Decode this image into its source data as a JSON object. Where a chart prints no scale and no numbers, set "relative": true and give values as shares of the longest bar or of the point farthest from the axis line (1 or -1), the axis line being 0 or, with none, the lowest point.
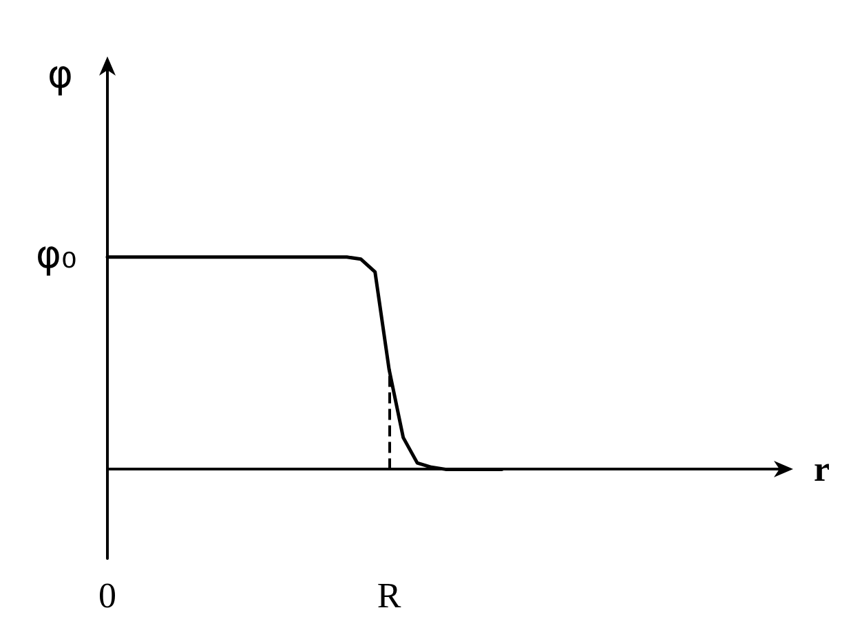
{
  "chart_data": {
    "type": "line",
    "relative": true,
    "xlabel": "r",
    "ylabel": "φ",
    "marker": "none",
    "grid": false,
    "categories": [
      "0",
      null,
      null,
      null,
      null,
      null,
      null,
      null,
      null,
      null,
      null,
      null,
      null,
      null,
      null,
      null,
      null,
      null,
      null,
      null,
      "R",
      null,
      null,
      null,
      null,
      null,
      null,
      null,
      null,
      null,
      null,
      null,
      null,
      null,
      null,
      null,
      null,
      null,
      null,
      null,
      null,
      null,
      null,
      null,
      null,
      null,
      null,
      null,
      null
    ],
    "series": [
      {
        "color": "#000000",
        "values": [
          1,
          1,
          1,
          1,
          1,
          1,
          1,
          1,
          1,
          1,
          1,
          1,
          1,
          1,
          1,
          1,
          1,
          1,
          0.99,
          0.93,
          0.47,
          0.15,
          0.03,
          0.01,
          0,
          0,
          0,
          0,
          0,
          null,
          null,
          null,
          null,
          null,
          null,
          null,
          null,
          null,
          null,
          null,
          null,
          null,
          null,
          null,
          null,
          null,
          null,
          null,
          null
        ]
      }
    ],
    "ref_lines": [
      {
        "axis": "x",
        "value": "R",
        "line_style": "dashed",
        "color": "#000000"
      }
    ],
    "annotations": [
      {
        "text": "φ₀",
        "x": "0",
        "y": 1
      }
    ]
  }
}
